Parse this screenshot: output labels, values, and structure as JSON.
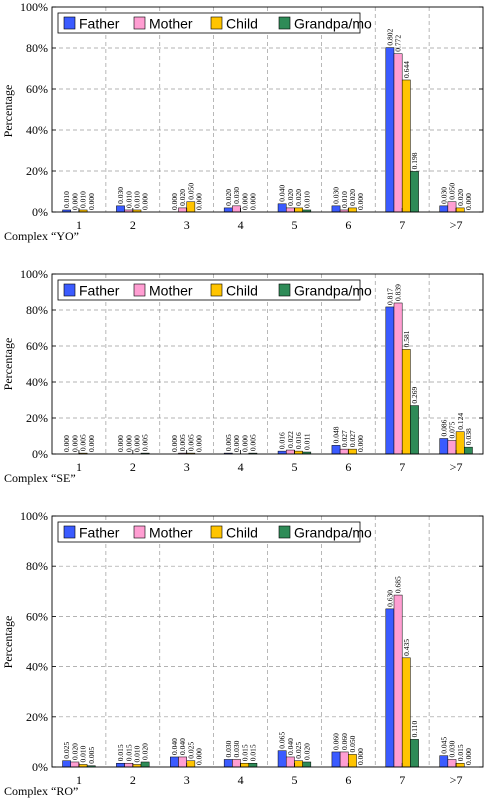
{
  "chart_data": [
    {
      "type": "bar",
      "caption": "Complex “YO”",
      "ylabel": "Percentage",
      "ylim": [
        0,
        1
      ],
      "yticks": [
        "0%",
        "20%",
        "40%",
        "60%",
        "80%",
        "100%"
      ],
      "grid": true,
      "legend_placement": "top-left",
      "categories": [
        "1",
        "2",
        "3",
        "4",
        "5",
        "6",
        "7",
        ">7"
      ],
      "series": [
        {
          "name": "Father",
          "color": "#3b5bff",
          "values": [
            0.01,
            0.03,
            0.0,
            0.02,
            0.04,
            0.03,
            0.802,
            0.03
          ],
          "labels": [
            "0.010",
            "0.030",
            "0.000",
            "0.020",
            "0.040",
            "0.030",
            "0.802",
            "0.030"
          ]
        },
        {
          "name": "Mother",
          "color": "#ff9ed2",
          "values": [
            0.0,
            0.01,
            0.02,
            0.03,
            0.02,
            0.01,
            0.772,
            0.05
          ],
          "labels": [
            "0.000",
            "0.010",
            "0.020",
            "0.030",
            "0.020",
            "0.010",
            "0.772",
            "0.050"
          ]
        },
        {
          "name": "Child",
          "color": "#ffc400",
          "values": [
            0.01,
            0.01,
            0.05,
            0.0,
            0.02,
            0.02,
            0.644,
            0.02
          ],
          "labels": [
            "0.010",
            "0.010",
            "0.050",
            "0.000",
            "0.020",
            "0.020",
            "0.644",
            "0.020"
          ]
        },
        {
          "name": "Grandpa/mo",
          "color": "#2e8b57",
          "values": [
            0.0,
            0.0,
            0.0,
            0.0,
            0.01,
            0.0,
            0.198,
            0.0
          ],
          "labels": [
            "0.000",
            "0.000",
            "0.000",
            "0.000",
            "0.010",
            "0.000",
            "0.198",
            "0.000"
          ]
        }
      ]
    },
    {
      "type": "bar",
      "caption": "Complex “SE”",
      "ylabel": "Percentage",
      "ylim": [
        0,
        1
      ],
      "yticks": [
        "0%",
        "20%",
        "40%",
        "60%",
        "80%",
        "100%"
      ],
      "grid": true,
      "legend_placement": "top-left",
      "categories": [
        "1",
        "2",
        "3",
        "4",
        "5",
        "6",
        "7",
        ">7"
      ],
      "series": [
        {
          "name": "Father",
          "color": "#3b5bff",
          "values": [
            0.0,
            0.0,
            0.0,
            0.005,
            0.016,
            0.048,
            0.817,
            0.086
          ],
          "labels": [
            "0.000",
            "0.000",
            "0.000",
            "0.005",
            "0.016",
            "0.048",
            "0.817",
            "0.086"
          ]
        },
        {
          "name": "Mother",
          "color": "#ff9ed2",
          "values": [
            0.0,
            0.0,
            0.005,
            0.0,
            0.022,
            0.027,
            0.839,
            0.075
          ],
          "labels": [
            "0.000",
            "0.000",
            "0.005",
            "0.000",
            "0.022",
            "0.027",
            "0.839",
            "0.075"
          ]
        },
        {
          "name": "Child",
          "color": "#ffc400",
          "values": [
            0.005,
            0.0,
            0.005,
            0.0,
            0.016,
            0.027,
            0.581,
            0.124
          ],
          "labels": [
            "0.005",
            "0.000",
            "0.005",
            "0.000",
            "0.016",
            "0.027",
            "0.581",
            "0.124"
          ]
        },
        {
          "name": "Grandpa/mo",
          "color": "#2e8b57",
          "values": [
            0.0,
            0.005,
            0.0,
            0.005,
            0.011,
            0.0,
            0.269,
            0.038
          ],
          "labels": [
            "0.000",
            "0.005",
            "0.000",
            "0.005",
            "0.011",
            "0.000",
            "0.269",
            "0.038"
          ]
        }
      ]
    },
    {
      "type": "bar",
      "caption": "Complex “RO”",
      "ylabel": "Percentage",
      "ylim": [
        0,
        1
      ],
      "yticks": [
        "0%",
        "20%",
        "40%",
        "60%",
        "80%",
        "100%"
      ],
      "grid": true,
      "legend_placement": "top-left",
      "categories": [
        "1",
        "2",
        "3",
        "4",
        "5",
        "6",
        "7",
        ">7"
      ],
      "series": [
        {
          "name": "Father",
          "color": "#3b5bff",
          "values": [
            0.025,
            0.015,
            0.04,
            0.03,
            0.065,
            0.06,
            0.63,
            0.045
          ],
          "labels": [
            "0.025",
            "0.015",
            "0.040",
            "0.030",
            "0.065",
            "0.060",
            "0.630",
            "0.045"
          ]
        },
        {
          "name": "Mother",
          "color": "#ff9ed2",
          "values": [
            0.02,
            0.015,
            0.04,
            0.03,
            0.04,
            0.06,
            0.685,
            0.03
          ],
          "labels": [
            "0.020",
            "0.015",
            "0.040",
            "0.030",
            "0.040",
            "0.060",
            "0.685",
            "0.030"
          ]
        },
        {
          "name": "Child",
          "color": "#ffc400",
          "values": [
            0.01,
            0.01,
            0.025,
            0.015,
            0.025,
            0.05,
            0.435,
            0.015
          ],
          "labels": [
            "0.010",
            "0.010",
            "0.025",
            "0.015",
            "0.025",
            "0.050",
            "0.435",
            "0.015"
          ]
        },
        {
          "name": "Grandpa/mo",
          "color": "#2e8b57",
          "values": [
            0.005,
            0.02,
            0.0,
            0.015,
            0.02,
            0.0,
            0.11,
            0.0
          ],
          "labels": [
            "0.005",
            "0.020",
            "0.000",
            "0.015",
            "0.020",
            "0.000",
            "0.110",
            "0.000"
          ]
        }
      ]
    }
  ]
}
